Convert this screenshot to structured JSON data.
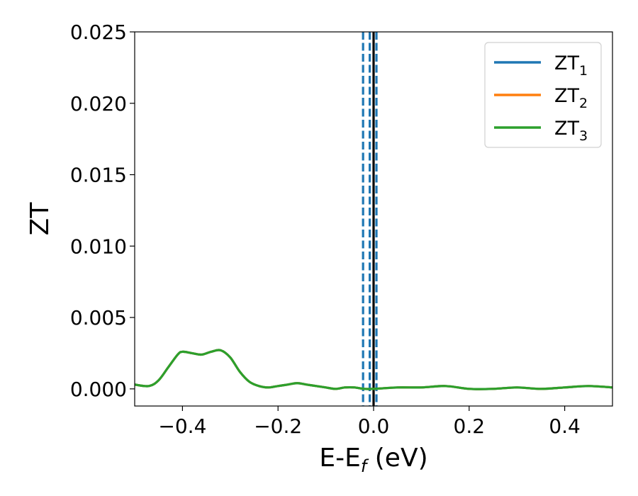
{
  "chart_data": {
    "type": "line",
    "xlabel": "E-E",
    "xlabel_sub": "f",
    "xlabel_unit": " (eV)",
    "ylabel": "ZT",
    "xlim": [
      -0.5,
      0.5
    ],
    "ylim": [
      -0.0012,
      0.025
    ],
    "xticks": [
      -0.4,
      -0.2,
      0.0,
      0.2,
      0.4
    ],
    "xtick_labels": [
      "−0.4",
      "−0.2",
      "0.0",
      "0.2",
      "0.4"
    ],
    "yticks": [
      0.0,
      0.005,
      0.01,
      0.015,
      0.02,
      0.025
    ],
    "ytick_labels": [
      "0.000",
      "0.005",
      "0.010",
      "0.015",
      "0.020",
      "0.025"
    ],
    "grid": false,
    "legend_position": "top-right",
    "x": [
      -0.5,
      -0.47,
      -0.45,
      -0.43,
      -0.41,
      -0.4,
      -0.38,
      -0.36,
      -0.34,
      -0.32,
      -0.3,
      -0.28,
      -0.26,
      -0.24,
      -0.22,
      -0.2,
      -0.18,
      -0.16,
      -0.14,
      -0.12,
      -0.1,
      -0.08,
      -0.06,
      -0.04,
      -0.02,
      0.0,
      0.05,
      0.1,
      0.15,
      0.2,
      0.25,
      0.3,
      0.35,
      0.4,
      0.45,
      0.5
    ],
    "series": [
      {
        "name": "ZT",
        "name_sub": "1",
        "color": "#1f77b4",
        "values": [
          0.0003,
          0.0002,
          0.0006,
          0.0015,
          0.0024,
          0.0026,
          0.0025,
          0.0024,
          0.0026,
          0.0027,
          0.0022,
          0.0012,
          0.0005,
          0.0002,
          0.0001,
          0.0002,
          0.0003,
          0.0004,
          0.0003,
          0.0002,
          0.0001,
          0.0,
          0.0001,
          0.0001,
          0.0,
          0.0,
          0.0001,
          0.0001,
          0.0002,
          0.0,
          0.0,
          0.0001,
          0.0,
          0.0001,
          0.0002,
          0.0001
        ]
      },
      {
        "name": "ZT",
        "name_sub": "2",
        "color": "#ff7f0e",
        "values": [
          0.0003,
          0.0002,
          0.0006,
          0.0015,
          0.0024,
          0.0026,
          0.0025,
          0.0024,
          0.0026,
          0.0027,
          0.0022,
          0.0012,
          0.0005,
          0.0002,
          0.0001,
          0.0002,
          0.0003,
          0.0004,
          0.0003,
          0.0002,
          0.0001,
          0.0,
          0.0001,
          0.0001,
          0.0,
          0.0,
          0.0001,
          0.0001,
          0.0002,
          0.0,
          0.0,
          0.0001,
          0.0,
          0.0001,
          0.0002,
          0.0001
        ]
      },
      {
        "name": "ZT",
        "name_sub": "3",
        "color": "#2ca02c",
        "values": [
          0.0003,
          0.0002,
          0.0006,
          0.0015,
          0.0024,
          0.0026,
          0.0025,
          0.0024,
          0.0026,
          0.0027,
          0.0022,
          0.0012,
          0.0005,
          0.0002,
          0.0001,
          0.0002,
          0.0003,
          0.0004,
          0.0003,
          0.0002,
          0.0001,
          0.0,
          0.0001,
          0.0001,
          0.0,
          0.0,
          0.0001,
          0.0001,
          0.0002,
          0.0,
          0.0,
          0.0001,
          0.0,
          0.0001,
          0.0002,
          0.0001
        ]
      }
    ],
    "vlines": [
      {
        "x": -0.022,
        "style": "dashed",
        "color": "#1f77b4"
      },
      {
        "x": -0.008,
        "style": "dashed",
        "color": "#1f77b4"
      },
      {
        "x": 0.006,
        "style": "dashed",
        "color": "#1f77b4"
      },
      {
        "x": 0.0,
        "style": "solid",
        "color": "#000000"
      }
    ]
  }
}
